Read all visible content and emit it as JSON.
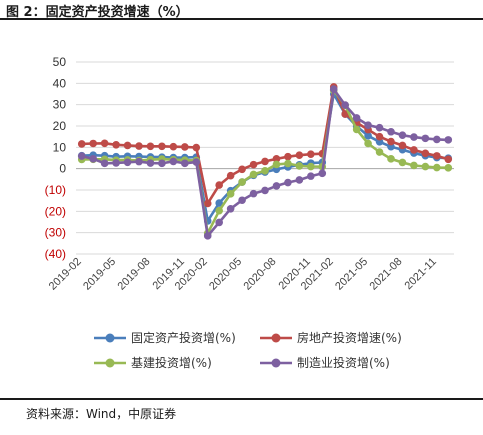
{
  "figure_title": "图 2：固定资产投资增速（%）",
  "source_note": "资料来源：Wind，中原证券",
  "colors": {
    "fixed": "#4a7ebb",
    "realestate": "#be4b48",
    "infra": "#98b954",
    "manufacturing": "#7d60a0",
    "negative_label": "#c00000",
    "positive_label": "#333333"
  },
  "chart_data": {
    "type": "line",
    "title": "",
    "xlabel": "",
    "ylabel": "",
    "ylim": [
      -40,
      50
    ],
    "yticks": [
      50,
      40,
      30,
      20,
      10,
      0,
      -10,
      -20,
      -30,
      -40
    ],
    "ytick_labels": [
      "50",
      "40",
      "30",
      "20",
      "10",
      "0",
      "(10)",
      "(20)",
      "(30)",
      "(40)"
    ],
    "xtick_labels": [
      "2019-02",
      "2019-05",
      "2019-08",
      "2019-11",
      "2020-02",
      "2020-05",
      "2020-08",
      "2020-11",
      "2021-02",
      "2021-05",
      "2021-08",
      "2021-11"
    ],
    "grid": true,
    "legend_position": "bottom",
    "x": [
      "2019-02",
      "2019-03",
      "2019-04",
      "2019-05",
      "2019-06",
      "2019-07",
      "2019-08",
      "2019-09",
      "2019-10",
      "2019-11",
      "2019-12",
      "2020-02",
      "2020-03",
      "2020-04",
      "2020-05",
      "2020-06",
      "2020-07",
      "2020-08",
      "2020-09",
      "2020-10",
      "2020-11",
      "2020-12",
      "2021-02",
      "2021-03",
      "2021-04",
      "2021-05",
      "2021-06",
      "2021-07",
      "2021-08",
      "2021-09",
      "2021-10",
      "2021-11",
      "2021-12"
    ],
    "series": [
      {
        "name": "固定资产投资增(%)",
        "color_key": "fixed",
        "values": [
          6.1,
          6.3,
          6.1,
          5.6,
          5.8,
          5.7,
          5.5,
          5.4,
          5.2,
          5.2,
          5.4,
          -24.5,
          -16.1,
          -10.3,
          -6.3,
          -3.1,
          -1.6,
          -0.3,
          0.8,
          1.8,
          2.6,
          2.9,
          35.0,
          25.6,
          19.9,
          15.4,
          12.6,
          10.3,
          8.9,
          7.3,
          6.1,
          5.2,
          4.9
        ]
      },
      {
        "name": "房地产投资增速(%)",
        "color_key": "realestate",
        "values": [
          11.6,
          11.8,
          11.9,
          11.2,
          10.9,
          10.6,
          10.5,
          10.5,
          10.3,
          10.2,
          9.9,
          -16.3,
          -7.7,
          -3.3,
          -0.3,
          1.9,
          3.4,
          4.6,
          5.6,
          6.3,
          6.8,
          7.0,
          38.3,
          25.6,
          21.6,
          18.3,
          15.0,
          12.7,
          10.9,
          8.8,
          7.2,
          6.0,
          4.4
        ]
      },
      {
        "name": "基建投资增(%)",
        "color_key": "infra",
        "values": [
          4.3,
          4.4,
          4.4,
          4.0,
          4.1,
          3.8,
          4.2,
          4.5,
          4.2,
          4.0,
          3.8,
          -30.3,
          -19.7,
          -11.8,
          -6.3,
          -2.7,
          -1.0,
          2.0,
          2.4,
          1.3,
          1.0,
          0.9,
          36.6,
          29.7,
          18.4,
          11.8,
          7.8,
          4.6,
          2.9,
          1.5,
          1.0,
          0.5,
          0.4
        ]
      },
      {
        "name": "制造业投资增(%)",
        "color_key": "manufacturing",
        "values": [
          5.9,
          4.6,
          2.5,
          2.7,
          3.0,
          3.3,
          2.6,
          2.5,
          3.4,
          2.5,
          3.1,
          -31.5,
          -25.2,
          -18.8,
          -14.8,
          -11.7,
          -10.2,
          -8.1,
          -6.5,
          -5.3,
          -3.5,
          -2.2,
          37.3,
          29.8,
          23.8,
          20.4,
          19.2,
          17.3,
          15.7,
          14.8,
          14.2,
          13.7,
          13.5
        ]
      }
    ]
  }
}
